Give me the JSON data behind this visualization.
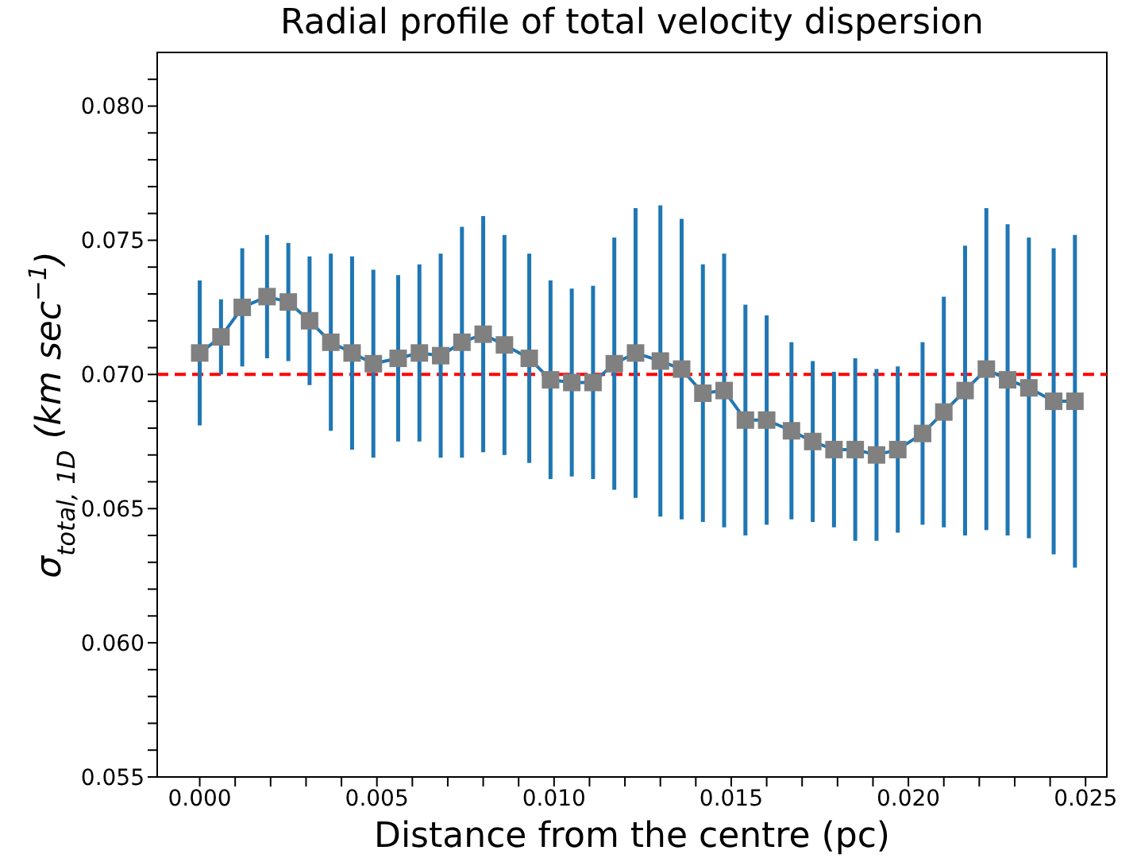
{
  "chart_data": {
    "type": "line",
    "title": "Radial profile of total velocity dispersion",
    "xlabel": "Distance from the centre (pc)",
    "ylabel": "σ$_{total, 1D}$ (km sec$^{−1}$)",
    "x": [
      0,
      0.0006,
      0.0012,
      0.0019,
      0.0025,
      0.0031,
      0.0037,
      0.0043,
      0.0049,
      0.0056,
      0.0062,
      0.0068,
      0.0074,
      0.008,
      0.0086,
      0.0093,
      0.0099,
      0.0105,
      0.0111,
      0.0117,
      0.0123,
      0.013,
      0.0136,
      0.0142,
      0.0148,
      0.0154,
      0.016,
      0.0167,
      0.0173,
      0.0179,
      0.0185,
      0.0191,
      0.0197,
      0.0204,
      0.021,
      0.0216,
      0.0222,
      0.0228,
      0.0234,
      0.0241,
      0.0247
    ],
    "series": [
      {
        "color": "#1f77b4",
        "values": [
          0.0708,
          0.0714,
          0.0725,
          0.0729,
          0.0727,
          0.072,
          0.0712,
          0.0708,
          0.0704,
          0.0706,
          0.0708,
          0.0707,
          0.0712,
          0.0715,
          0.0711,
          0.0706,
          0.0698,
          0.0697,
          0.0697,
          0.0704,
          0.0708,
          0.0705,
          0.0702,
          0.0693,
          0.0694,
          0.0683,
          0.0683,
          0.0679,
          0.0675,
          0.0672,
          0.0672,
          0.067,
          0.0672,
          0.0678,
          0.0686,
          0.0694,
          0.0702,
          0.0698,
          0.0695,
          0.069,
          0.069
        ],
        "errors": [
          0.0027,
          0.0014,
          0.0022,
          0.0023,
          0.0022,
          0.0024,
          0.0033,
          0.0036,
          0.0035,
          0.0031,
          0.0033,
          0.0038,
          0.0043,
          0.0044,
          0.0041,
          0.0039,
          0.0037,
          0.0035,
          0.0036,
          0.0047,
          0.0054,
          0.0058,
          0.0056,
          0.0048,
          0.0051,
          0.0043,
          0.0039,
          0.0033,
          0.003,
          0.0029,
          0.0034,
          0.0032,
          0.0031,
          0.0034,
          0.0043,
          0.0054,
          0.006,
          0.0058,
          0.0056,
          0.0057,
          0.0062
        ]
      }
    ],
    "marker": "square",
    "line_style": "solid",
    "xlim": [
      -0.0012,
      0.0256
    ],
    "xticks": [
      {
        "value": 0,
        "label": "0.000"
      },
      {
        "value": 0.001,
        "label": null
      },
      {
        "value": 0.002,
        "label": null
      },
      {
        "value": 0.003,
        "label": null
      },
      {
        "value": 0.004,
        "label": null
      },
      0.005,
      {
        "value": 0.006,
        "label": null
      },
      {
        "value": 0.007,
        "label": null
      },
      {
        "value": 0.008,
        "label": null
      },
      {
        "value": 0.009,
        "label": null
      },
      {
        "value": 0.01,
        "label": "0.010"
      },
      {
        "value": 0.011,
        "label": null
      },
      {
        "value": 0.012,
        "label": null
      },
      {
        "value": 0.013,
        "label": null
      },
      {
        "value": 0.014,
        "label": null
      },
      0.015,
      {
        "value": 0.016,
        "label": null
      },
      {
        "value": 0.017,
        "label": null
      },
      {
        "value": 0.018,
        "label": null
      },
      {
        "value": 0.019,
        "label": null
      },
      {
        "value": 0.02,
        "label": "0.020"
      },
      {
        "value": 0.021,
        "label": null
      },
      {
        "value": 0.022,
        "label": null
      },
      {
        "value": 0.023,
        "label": null
      },
      {
        "value": 0.024,
        "label": null
      },
      0.025
    ],
    "ylim": [
      0.055,
      0.082
    ],
    "yticks": [
      0.055,
      {
        "value": 0.056,
        "label": null
      },
      {
        "value": 0.057,
        "label": null
      },
      {
        "value": 0.058,
        "label": null
      },
      {
        "value": 0.059,
        "label": null
      },
      {
        "value": 0.06,
        "label": "0.060"
      },
      {
        "value": 0.061,
        "label": null
      },
      {
        "value": 0.062,
        "label": null
      },
      {
        "value": 0.063,
        "label": null
      },
      {
        "value": 0.064,
        "label": null
      },
      0.065,
      {
        "value": 0.066,
        "label": null
      },
      {
        "value": 0.067,
        "label": null
      },
      {
        "value": 0.068,
        "label": null
      },
      {
        "value": 0.069,
        "label": null
      },
      {
        "value": 0.07,
        "label": "0.070"
      },
      {
        "value": 0.071,
        "label": null
      },
      {
        "value": 0.072,
        "label": null
      },
      {
        "value": 0.073,
        "label": null
      },
      {
        "value": 0.074,
        "label": null
      },
      0.075,
      {
        "value": 0.076,
        "label": null
      },
      {
        "value": 0.077,
        "label": null
      },
      {
        "value": 0.078,
        "label": null
      },
      {
        "value": 0.079,
        "label": null
      },
      {
        "value": 0.08,
        "label": "0.080"
      },
      {
        "value": 0.081,
        "label": null
      }
    ],
    "ref_lines": [
      {
        "axis": "y",
        "value": 0.07,
        "color": "#ff0000",
        "line_style": "dashed"
      }
    ]
  }
}
